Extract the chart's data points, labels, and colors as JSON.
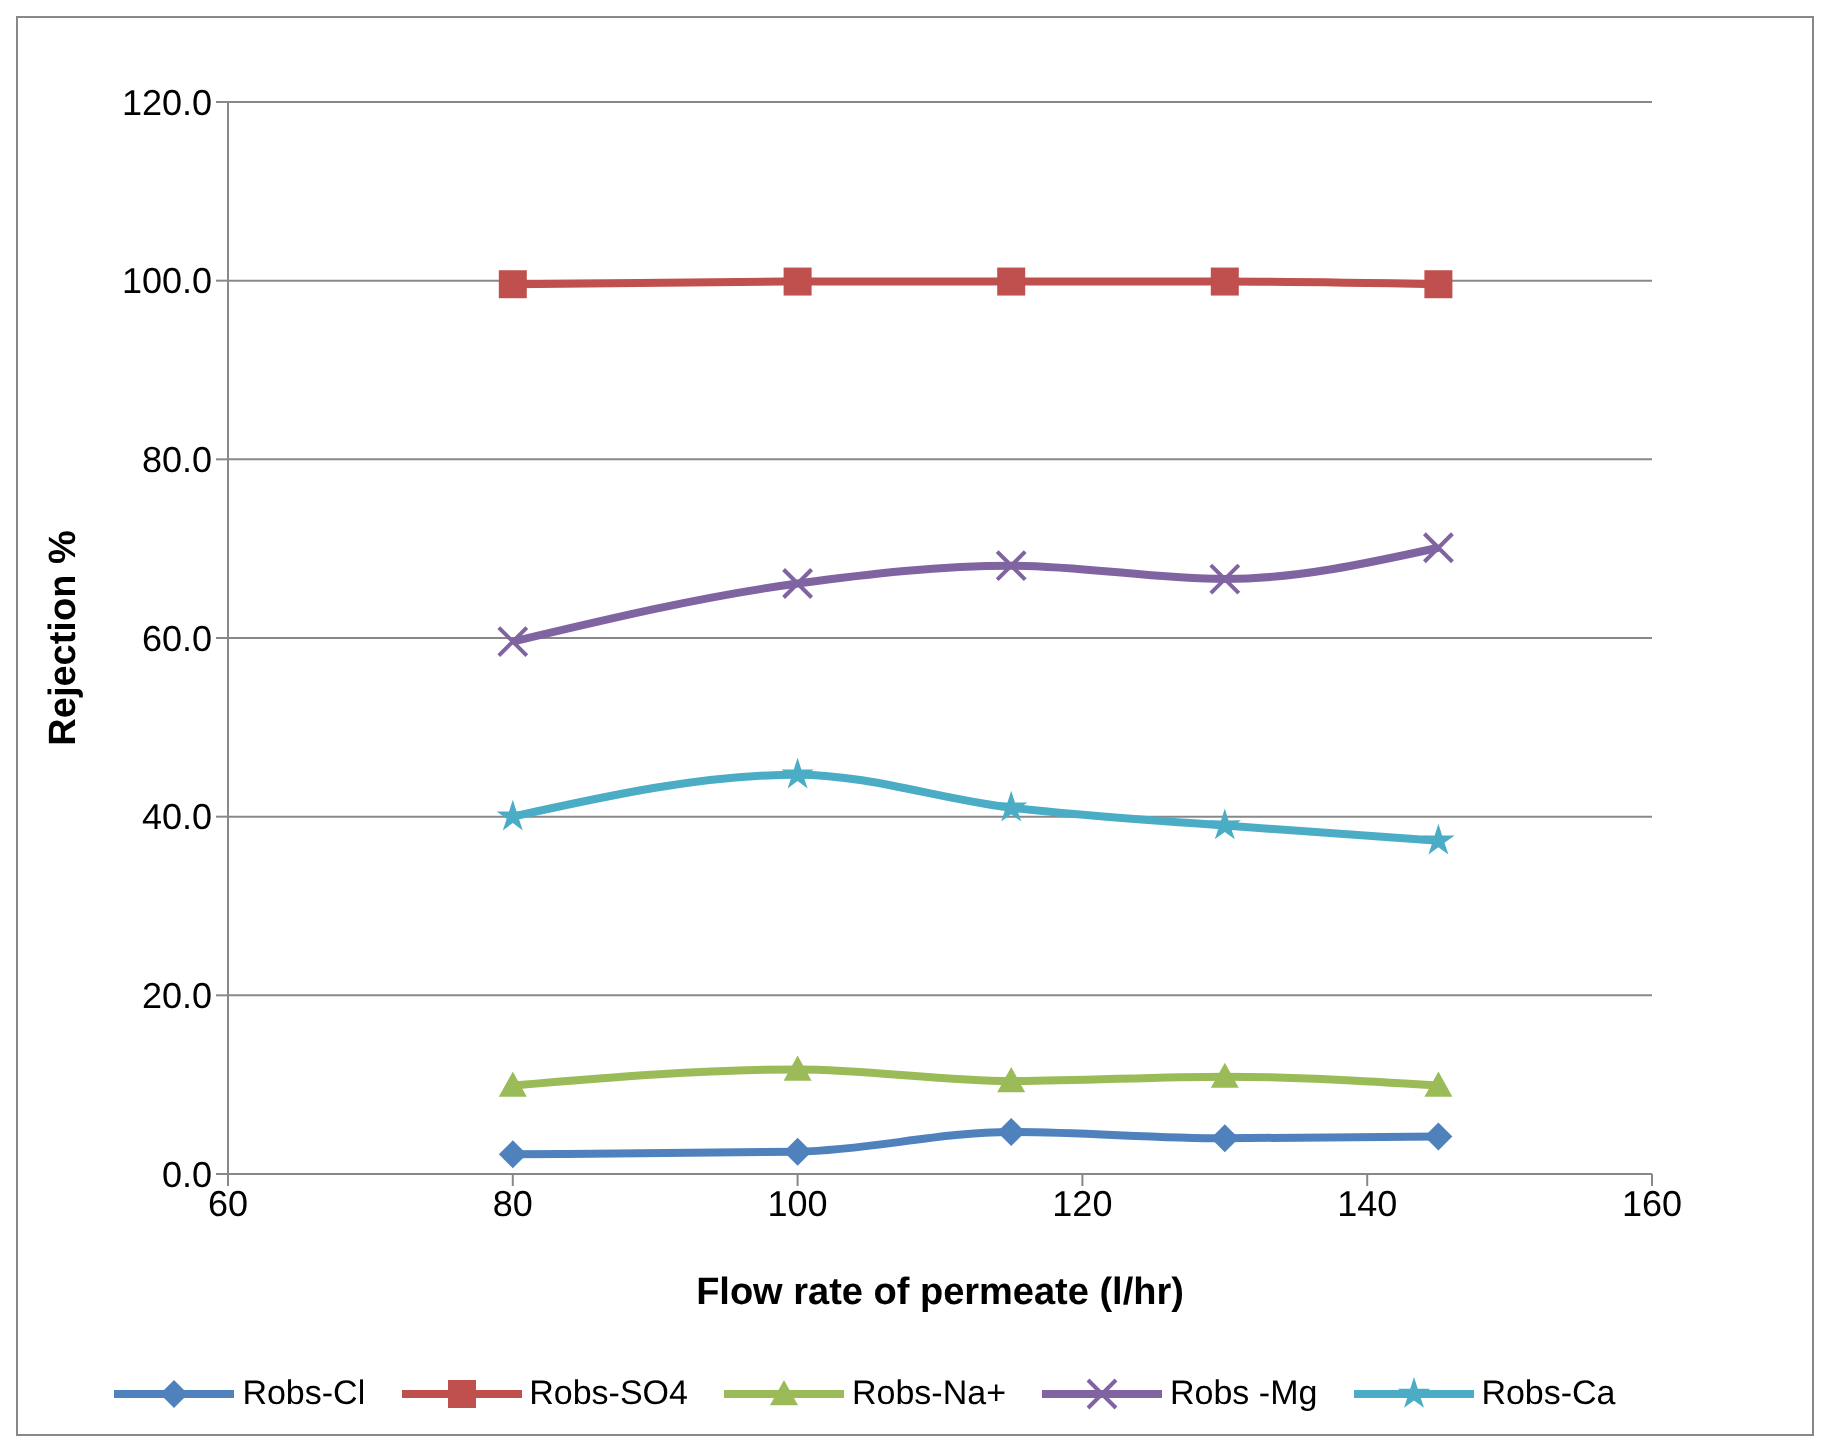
{
  "chart_data": {
    "type": "line",
    "xlabel": "Flow rate of permeate (l/hr)",
    "ylabel": "Rejection %",
    "x": [
      80,
      100,
      115,
      130,
      145
    ],
    "series": [
      {
        "name": "Robs-Cl",
        "color": "#4f81bd",
        "marker": "diamond",
        "values": [
          2.2,
          2.5,
          4.7,
          4.0,
          4.2
        ]
      },
      {
        "name": "Robs-SO4",
        "color": "#c0504d",
        "marker": "square",
        "values": [
          99.6,
          99.9,
          99.9,
          99.9,
          99.6
        ]
      },
      {
        "name": "Robs-Na+",
        "color": "#9bbb59",
        "marker": "triangle",
        "values": [
          9.9,
          11.7,
          10.4,
          10.9,
          9.9
        ]
      },
      {
        "name": "Robs -Mg",
        "color": "#8064a2",
        "marker": "cross",
        "values": [
          59.6,
          66.1,
          68.1,
          66.6,
          70.1
        ]
      },
      {
        "name": "Robs-Ca",
        "color": "#4bacc6",
        "marker": "star",
        "values": [
          40.0,
          44.7,
          41.0,
          39.0,
          37.3
        ]
      }
    ],
    "xlim": [
      60,
      160
    ],
    "xticks": [
      60,
      80,
      100,
      120,
      140,
      160
    ],
    "ylim": [
      0,
      120
    ],
    "yticks": [
      {
        "value": 0,
        "label": "0.0"
      },
      {
        "value": 20,
        "label": "20.0"
      },
      {
        "value": 40,
        "label": "40.0"
      },
      {
        "value": 60,
        "label": "60.0"
      },
      {
        "value": 80,
        "label": "80.0"
      },
      {
        "value": 100,
        "label": "100.0"
      },
      {
        "value": 120,
        "label": "120.0"
      }
    ],
    "grid": "y",
    "legend": "bottom",
    "line_style": "solid"
  }
}
